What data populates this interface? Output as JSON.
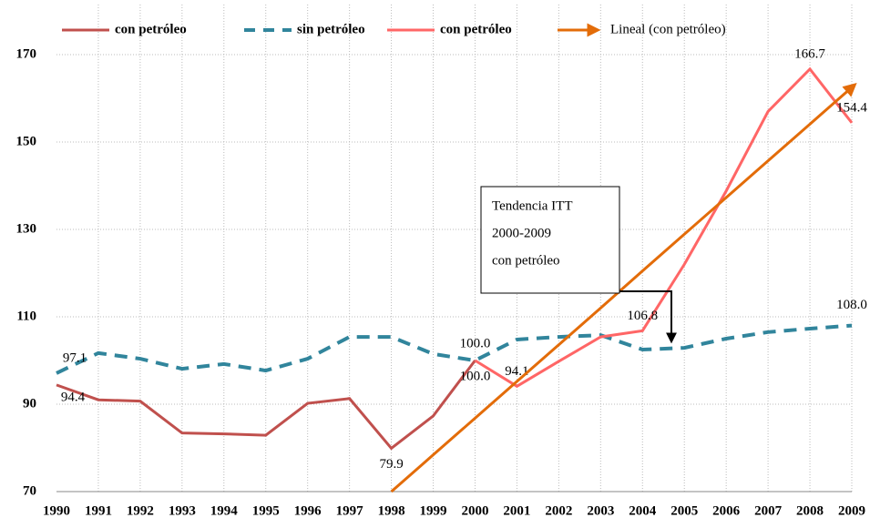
{
  "chart_data": {
    "type": "line",
    "categories": [
      "1990",
      "1991",
      "1992",
      "1993",
      "1994",
      "1995",
      "1996",
      "1997",
      "1998",
      "1999",
      "2000",
      "2001",
      "2002",
      "2003",
      "2004",
      "2005",
      "2006",
      "2007",
      "2008",
      "2009"
    ],
    "series": [
      {
        "name": "con petróleo",
        "color": "#c0504d",
        "line_style": "solid",
        "values": [
          94.4,
          91.0,
          90.7,
          83.4,
          83.2,
          82.9,
          90.2,
          91.3,
          79.9,
          87.3,
          100,
          null,
          null,
          null,
          null,
          null,
          null,
          null,
          null,
          null
        ],
        "value_labels": [
          "94.4",
          null,
          null,
          null,
          null,
          null,
          null,
          null,
          "79.9",
          null,
          null,
          null,
          null,
          null,
          null,
          null,
          null,
          null,
          null,
          null
        ]
      },
      {
        "name": "sin petróleo",
        "color": "#31859c",
        "line_style": "dashed",
        "values": [
          97.1,
          101.7,
          100.4,
          98.1,
          99.2,
          97.7,
          100.4,
          105.4,
          105.4,
          101.5,
          100,
          104.8,
          105.4,
          105.8,
          102.5,
          102.9,
          105.0,
          106.5,
          107.3,
          108.0
        ],
        "value_labels": [
          "97.1",
          null,
          null,
          null,
          null,
          null,
          null,
          null,
          null,
          null,
          "100.0",
          null,
          null,
          null,
          null,
          null,
          null,
          null,
          null,
          "108.0"
        ]
      },
      {
        "name": "con petróleo",
        "color": "#ff6666",
        "line_style": "solid",
        "values": [
          null,
          null,
          null,
          null,
          null,
          null,
          null,
          null,
          null,
          null,
          100,
          94.1,
          99.8,
          105.4,
          106.8,
          122.0,
          138.8,
          157.0,
          166.7,
          154.4
        ],
        "value_labels": [
          null,
          null,
          null,
          null,
          null,
          null,
          null,
          null,
          null,
          null,
          "100.0",
          "94.1",
          null,
          null,
          "106.8",
          null,
          null,
          null,
          "166.7",
          "154.4"
        ]
      },
      {
        "name": "Lineal (con petróleo)",
        "color": "#e36c09",
        "line_style": "arrow",
        "values": [
          null,
          null,
          null,
          null,
          null,
          null,
          null,
          null,
          70,
          78.4,
          86.8,
          95.2,
          103.6,
          112.0,
          120.5,
          128.9,
          137.3,
          145.7,
          154.1,
          162.5
        ]
      }
    ],
    "annotation": {
      "lines": [
        "Tendencia ITT",
        "2000-2009",
        "con petróleo"
      ]
    },
    "ylim": [
      70,
      178
    ],
    "yticks": [
      70,
      90,
      110,
      130,
      150,
      170
    ],
    "grid": true,
    "legend": "top"
  }
}
